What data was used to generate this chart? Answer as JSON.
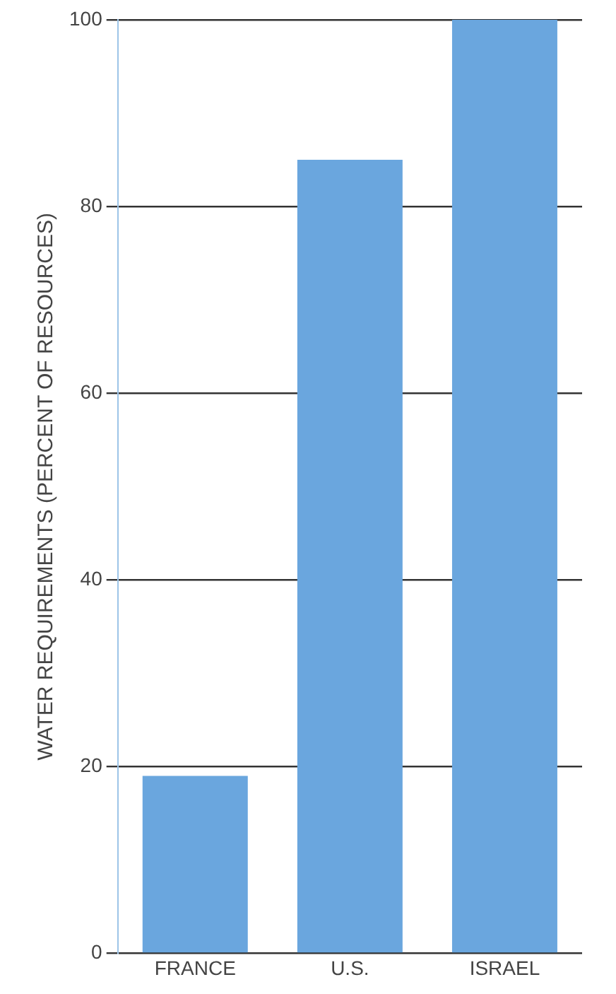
{
  "chart_data": {
    "type": "bar",
    "ylabel": "WATER REQUIREMENTS (PERCENT OF RESOURCES)",
    "categories": [
      "FRANCE",
      "U.S.",
      "ISRAEL"
    ],
    "values": [
      19,
      85,
      100
    ],
    "color": "#6aa6de",
    "ylim": [
      0,
      100
    ],
    "yticks": [
      0,
      20,
      40,
      60,
      80,
      100
    ],
    "grid": "y"
  }
}
